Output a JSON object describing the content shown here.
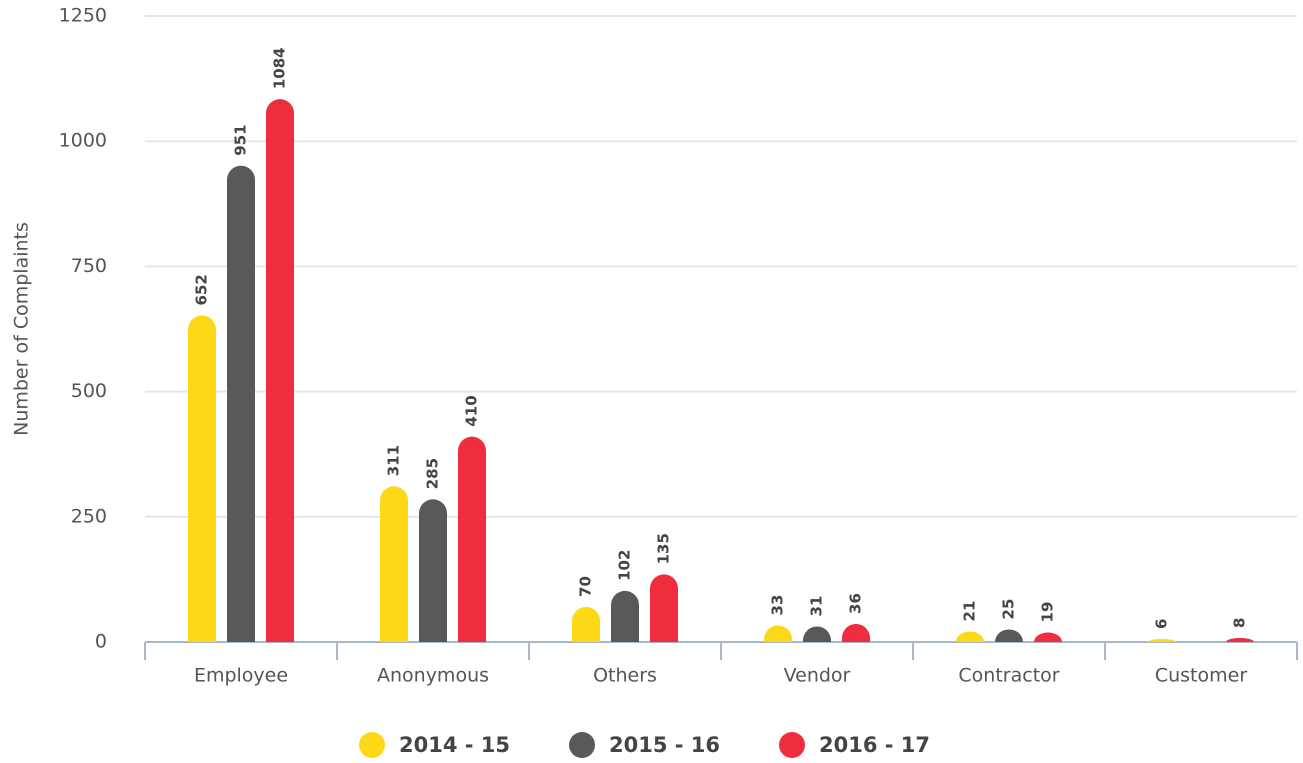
{
  "chart_data": {
    "type": "bar",
    "y_label": "Number of Complaints",
    "categories": [
      "Employee",
      "Anonymous",
      "Others",
      "Vendor",
      "Contractor",
      "Customer"
    ],
    "series": [
      {
        "name": "2014 - 15",
        "color": "#fdd816",
        "values": [
          652,
          311,
          70,
          33,
          21,
          6
        ]
      },
      {
        "name": "2015 - 16",
        "color": "#58595b",
        "values": [
          951,
          285,
          102,
          31,
          25,
          null
        ]
      },
      {
        "name": "2016 - 17",
        "color": "#ee2e3f",
        "values": [
          1084,
          410,
          135,
          36,
          19,
          8
        ]
      }
    ],
    "ylim": [
      0,
      1250
    ],
    "yticks": [
      0,
      250,
      500,
      750,
      1000,
      1250
    ],
    "grid": true,
    "legend": "bottom"
  }
}
